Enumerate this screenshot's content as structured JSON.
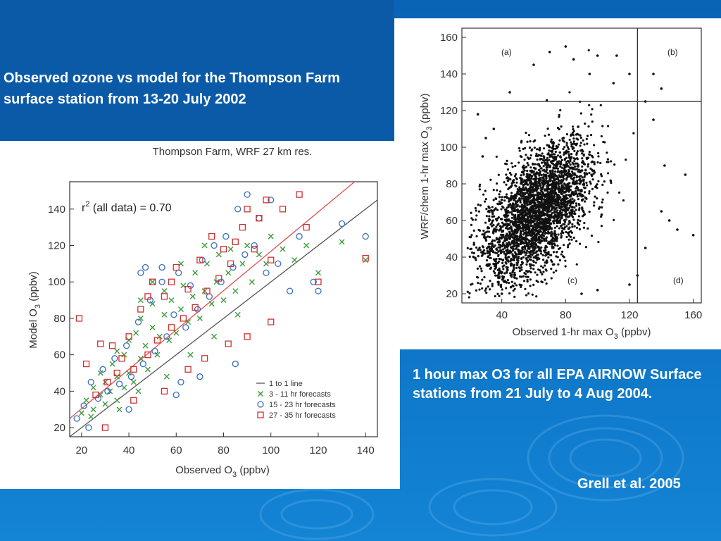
{
  "slide": {
    "caption_left": "Observed ozone vs model for the Thompson Farm surface station from 13-20 July 2002",
    "caption_right": "1 hour max O3 for all EPA AIRNOW Surface stations from 21 July to 4 Aug 2004.",
    "credit": "Grell et al. 2005",
    "colors": {
      "background": "#0b6fc2",
      "panel": "#ffffff",
      "text": "#ffffff"
    }
  },
  "chart_data": [
    {
      "type": "scatter",
      "title": "Thompson Farm, WRF 27 km res.",
      "xlabel": "Observed O",
      "xlabel_sub": "3",
      "xlabel_unit": " (ppbv)",
      "ylabel": "Model O",
      "ylabel_sub": "3",
      "ylabel_unit": " (ppbv)",
      "xlim": [
        15,
        145
      ],
      "ylim": [
        15,
        155
      ],
      "xticks": [
        20,
        40,
        60,
        80,
        100,
        120,
        140
      ],
      "yticks": [
        20,
        40,
        60,
        80,
        100,
        120,
        140
      ],
      "annotation": "r",
      "annotation_sup": "2",
      "annotation_rest": " (all data) = 0.70",
      "lines": [
        {
          "name": "1 to 1 line",
          "color": "#555555",
          "p1": [
            15,
            15
          ],
          "p2": [
            145,
            145
          ]
        },
        {
          "name": "",
          "color": "#e05050",
          "p1": [
            15,
            25
          ],
          "p2": [
            140,
            160
          ]
        }
      ],
      "legend": {
        "placement": "bottom-right",
        "entries": [
          "1 to 1 line",
          "3 - 11 hr forecasts",
          "15 - 23 hr forecasts",
          "27 - 35 hr forecasts"
        ]
      },
      "series": [
        {
          "name": "3 - 11 hr forecasts",
          "marker": "x",
          "color": "#3a9a3a",
          "points": [
            [
              20,
              28
            ],
            [
              22,
              35
            ],
            [
              25,
              30
            ],
            [
              25,
              42
            ],
            [
              28,
              38
            ],
            [
              28,
              50
            ],
            [
              30,
              33
            ],
            [
              30,
              45
            ],
            [
              32,
              40
            ],
            [
              33,
              55
            ],
            [
              35,
              35
            ],
            [
              35,
              48
            ],
            [
              38,
              42
            ],
            [
              38,
              60
            ],
            [
              40,
              50
            ],
            [
              40,
              68
            ],
            [
              42,
              45
            ],
            [
              43,
              72
            ],
            [
              45,
              58
            ],
            [
              45,
              80
            ],
            [
              47,
              65
            ],
            [
              48,
              52
            ],
            [
              50,
              75
            ],
            [
              50,
              88
            ],
            [
              52,
              60
            ],
            [
              53,
              70
            ],
            [
              55,
              82
            ],
            [
              55,
              95
            ],
            [
              57,
              68
            ],
            [
              58,
              90
            ],
            [
              60,
              72
            ],
            [
              62,
              85
            ],
            [
              63,
              98
            ],
            [
              65,
              78
            ],
            [
              67,
              92
            ],
            [
              68,
              105
            ],
            [
              70,
              80
            ],
            [
              72,
              95
            ],
            [
              73,
              110
            ],
            [
              75,
              88
            ],
            [
              77,
              100
            ],
            [
              78,
              115
            ],
            [
              80,
              90
            ],
            [
              82,
              105
            ],
            [
              83,
              118
            ],
            [
              85,
              95
            ],
            [
              88,
              110
            ],
            [
              90,
              120
            ],
            [
              92,
              100
            ],
            [
              95,
              115
            ],
            [
              98,
              110
            ],
            [
              100,
              125
            ],
            [
              105,
              118
            ],
            [
              110,
              112
            ],
            [
              115,
              120
            ],
            [
              120,
              105
            ],
            [
              130,
              122
            ],
            [
              140,
              112
            ],
            [
              24,
              26
            ],
            [
              36,
              30
            ],
            [
              44,
              40
            ],
            [
              56,
              48
            ],
            [
              66,
              60
            ],
            [
              76,
              70
            ],
            [
              86,
              82
            ],
            [
              62,
              110
            ],
            [
              72,
              120
            ],
            [
              35,
              62
            ],
            [
              45,
              90
            ],
            [
              50,
              100
            ]
          ]
        },
        {
          "name": "15 - 23 hr forecasts",
          "marker": "o",
          "color": "#3a6fc0",
          "points": [
            [
              18,
              25
            ],
            [
              21,
              32
            ],
            [
              24,
              45
            ],
            [
              27,
              36
            ],
            [
              29,
              52
            ],
            [
              31,
              40
            ],
            [
              34,
              58
            ],
            [
              36,
              44
            ],
            [
              39,
              65
            ],
            [
              41,
              48
            ],
            [
              44,
              78
            ],
            [
              46,
              55
            ],
            [
              49,
              90
            ],
            [
              51,
              62
            ],
            [
              54,
              100
            ],
            [
              56,
              70
            ],
            [
              59,
              82
            ],
            [
              61,
              105
            ],
            [
              64,
              75
            ],
            [
              66,
              98
            ],
            [
              69,
              85
            ],
            [
              71,
              112
            ],
            [
              74,
              92
            ],
            [
              76,
              120
            ],
            [
              79,
              100
            ],
            [
              81,
              125
            ],
            [
              84,
              108
            ],
            [
              86,
              140
            ],
            [
              89,
              115
            ],
            [
              90,
              148
            ],
            [
              93,
              120
            ],
            [
              95,
              135
            ],
            [
              98,
              105
            ],
            [
              100,
              145
            ],
            [
              103,
              110
            ],
            [
              108,
              95
            ],
            [
              112,
              125
            ],
            [
              118,
              100
            ],
            [
              120,
              95
            ],
            [
              130,
              132
            ],
            [
              140,
              125
            ],
            [
              23,
              20
            ],
            [
              40,
              30
            ],
            [
              47,
              108
            ],
            [
              45,
              105
            ],
            [
              54,
              108
            ],
            [
              62,
              45
            ],
            [
              70,
              48
            ],
            [
              85,
              55
            ],
            [
              60,
              38
            ]
          ]
        },
        {
          "name": "27 - 35 hr forecasts",
          "marker": "s",
          "color": "#d03030",
          "points": [
            [
              19,
              80
            ],
            [
              22,
              55
            ],
            [
              26,
              38
            ],
            [
              28,
              66
            ],
            [
              31,
              45
            ],
            [
              33,
              65
            ],
            [
              35,
              50
            ],
            [
              37,
              58
            ],
            [
              40,
              70
            ],
            [
              42,
              52
            ],
            [
              45,
              85
            ],
            [
              48,
              60
            ],
            [
              50,
              100
            ],
            [
              52,
              68
            ],
            [
              55,
              92
            ],
            [
              58,
              75
            ],
            [
              60,
              108
            ],
            [
              63,
              80
            ],
            [
              65,
              96
            ],
            [
              68,
              86
            ],
            [
              70,
              112
            ],
            [
              73,
              95
            ],
            [
              75,
              125
            ],
            [
              78,
              102
            ],
            [
              80,
              118
            ],
            [
              83,
              110
            ],
            [
              85,
              122
            ],
            [
              88,
              130
            ],
            [
              90,
              140
            ],
            [
              93,
              118
            ],
            [
              95,
              135
            ],
            [
              98,
              145
            ],
            [
              100,
              112
            ],
            [
              105,
              140
            ],
            [
              112,
              148
            ],
            [
              115,
              130
            ],
            [
              120,
              100
            ],
            [
              140,
              113
            ],
            [
              30,
              20
            ],
            [
              42,
              35
            ],
            [
              55,
              40
            ],
            [
              65,
              52
            ],
            [
              72,
              58
            ],
            [
              82,
              66
            ],
            [
              90,
              70
            ],
            [
              100,
              78
            ],
            [
              48,
              92
            ],
            [
              58,
              100
            ]
          ]
        }
      ]
    },
    {
      "type": "scatter",
      "title": "",
      "xlabel": "Observed 1-hr max O",
      "xlabel_sub": "3",
      "xlabel_unit": " (ppbv)",
      "ylabel": "WRF/chem 1-hr max O",
      "ylabel_sub": "3",
      "ylabel_unit": " (ppbv)",
      "xlim": [
        15,
        165
      ],
      "ylim": [
        15,
        165
      ],
      "xticks": [
        40,
        80,
        120,
        160
      ],
      "yticks": [
        20,
        40,
        60,
        80,
        100,
        120,
        140,
        160
      ],
      "threshold_x": 125,
      "threshold_y": 125,
      "quadrant_labels": {
        "a": "(a)",
        "b": "(b)",
        "c": "(c)",
        "d": "(d)"
      },
      "series": [
        {
          "name": "",
          "marker": "dot",
          "color": "#111111",
          "density_model": {
            "x_mean": 62,
            "y_mean": 65,
            "x_sd": 17,
            "y_sd": 19,
            "correlation": 0.55,
            "count": 3200
          },
          "outliers": [
            [
              80,
              155
            ],
            [
              85,
              148
            ],
            [
              95,
              140
            ],
            [
              100,
              150
            ],
            [
              110,
              135
            ],
            [
              112,
              150
            ],
            [
              120,
              140
            ],
            [
              130,
              125
            ],
            [
              135,
              115
            ],
            [
              140,
              65
            ],
            [
              142,
              90
            ],
            [
              145,
              60
            ],
            [
              150,
              55
            ],
            [
              155,
              85
            ],
            [
              160,
              52
            ],
            [
              135,
              140
            ],
            [
              140,
              132
            ],
            [
              25,
              118
            ],
            [
              30,
              105
            ],
            [
              35,
              110
            ],
            [
              45,
              130
            ],
            [
              60,
              145
            ],
            [
              70,
              152
            ],
            [
              28,
              95
            ],
            [
              120,
              25
            ],
            [
              125,
              30
            ],
            [
              130,
              45
            ],
            [
              100,
              22
            ],
            [
              90,
              20
            ],
            [
              40,
              20
            ]
          ]
        }
      ]
    }
  ]
}
